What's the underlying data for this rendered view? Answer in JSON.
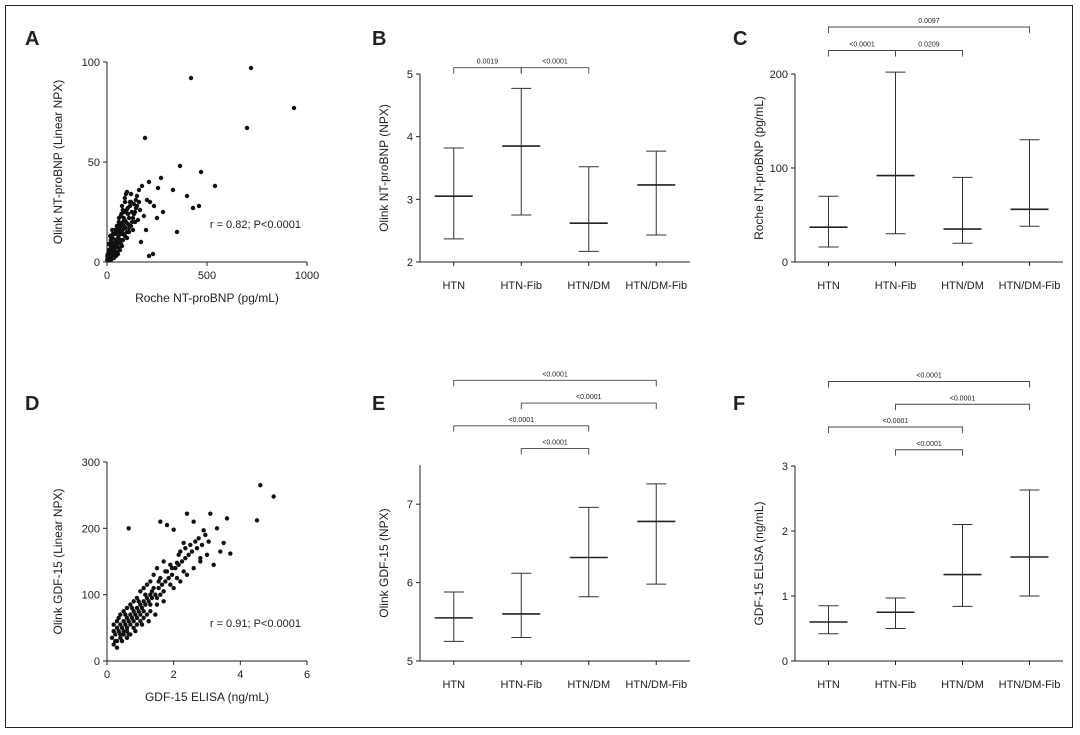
{
  "chart_data": [
    {
      "panel": "A",
      "type": "scatter",
      "xlabel": "Roche NT-proBNP (pg/mL)",
      "ylabel": "Olink NT-proBNP (Linear NPX)",
      "xlim": [
        0,
        1000
      ],
      "ylim": [
        0,
        100
      ],
      "xticks": [
        "0",
        "500",
        "1000"
      ],
      "yticks": [
        "0",
        "50",
        "100"
      ],
      "annotation": "r = 0.82; P<0.0001",
      "points": [
        [
          720,
          97
        ],
        [
          935,
          77
        ],
        [
          420,
          92
        ],
        [
          700,
          67
        ],
        [
          190,
          62
        ],
        [
          470,
          45
        ],
        [
          365,
          48
        ],
        [
          540,
          38
        ],
        [
          460,
          28
        ],
        [
          430,
          27
        ],
        [
          400,
          33
        ],
        [
          330,
          36
        ],
        [
          270,
          42
        ],
        [
          255,
          37
        ],
        [
          215,
          30
        ],
        [
          210,
          40
        ],
        [
          235,
          28
        ],
        [
          250,
          22
        ],
        [
          280,
          25
        ],
        [
          175,
          38
        ],
        [
          160,
          36
        ],
        [
          150,
          33
        ],
        [
          195,
          16
        ],
        [
          230,
          4
        ],
        [
          170,
          10
        ],
        [
          210,
          3
        ],
        [
          350,
          15
        ],
        [
          120,
          30
        ],
        [
          135,
          24
        ],
        [
          140,
          20
        ],
        [
          110,
          22
        ],
        [
          95,
          34
        ],
        [
          90,
          30
        ],
        [
          85,
          25
        ],
        [
          80,
          20
        ],
        [
          75,
          28
        ],
        [
          70,
          18
        ],
        [
          65,
          15
        ],
        [
          60,
          22
        ],
        [
          55,
          12
        ],
        [
          50,
          10
        ],
        [
          45,
          8
        ],
        [
          40,
          14
        ],
        [
          35,
          6
        ],
        [
          30,
          9
        ],
        [
          25,
          5
        ],
        [
          20,
          4
        ],
        [
          15,
          3
        ],
        [
          10,
          6
        ],
        [
          8,
          2
        ],
        [
          5,
          1
        ],
        [
          12,
          1
        ],
        [
          18,
          8
        ],
        [
          22,
          10
        ],
        [
          28,
          12
        ],
        [
          32,
          7
        ],
        [
          38,
          5
        ],
        [
          42,
          11
        ],
        [
          48,
          16
        ],
        [
          52,
          9
        ],
        [
          58,
          13
        ],
        [
          62,
          19
        ],
        [
          68,
          11
        ],
        [
          72,
          24
        ],
        [
          78,
          16
        ],
        [
          82,
          14
        ],
        [
          88,
          21
        ],
        [
          92,
          17
        ],
        [
          98,
          26
        ],
        [
          105,
          19
        ],
        [
          115,
          28
        ],
        [
          125,
          20
        ],
        [
          100,
          12
        ],
        [
          110,
          15
        ],
        [
          130,
          16
        ],
        [
          145,
          27
        ],
        [
          155,
          21
        ],
        [
          165,
          26
        ],
        [
          185,
          23
        ],
        [
          200,
          31
        ],
        [
          120,
          34
        ],
        [
          100,
          35
        ],
        [
          75,
          8
        ],
        [
          65,
          6
        ],
        [
          55,
          4
        ],
        [
          45,
          3
        ],
        [
          35,
          2
        ],
        [
          25,
          2
        ],
        [
          15,
          1
        ],
        [
          10,
          2
        ],
        [
          20,
          1
        ],
        [
          30,
          3
        ],
        [
          40,
          4
        ],
        [
          50,
          5
        ],
        [
          60,
          7
        ],
        [
          70,
          9
        ],
        [
          80,
          11
        ],
        [
          90,
          13
        ],
        [
          100,
          15
        ],
        [
          110,
          17
        ],
        [
          120,
          18
        ],
        [
          130,
          22
        ],
        [
          140,
          25
        ],
        [
          150,
          28
        ],
        [
          160,
          30
        ],
        [
          105,
          24
        ],
        [
          95,
          20
        ],
        [
          85,
          18
        ],
        [
          75,
          14
        ],
        [
          65,
          10
        ],
        [
          40,
          7
        ],
        [
          30,
          5
        ],
        [
          20,
          3
        ],
        [
          12,
          4
        ],
        [
          6,
          3
        ],
        [
          3,
          2
        ],
        [
          1,
          1
        ],
        [
          2,
          3
        ],
        [
          4,
          4
        ],
        [
          8,
          5
        ],
        [
          14,
          6
        ],
        [
          24,
          7
        ],
        [
          34,
          9
        ],
        [
          44,
          10
        ],
        [
          54,
          15
        ],
        [
          64,
          17
        ],
        [
          74,
          19
        ],
        [
          84,
          22
        ],
        [
          94,
          25
        ],
        [
          104,
          27
        ],
        [
          114,
          30
        ],
        [
          124,
          25
        ],
        [
          134,
          29
        ],
        [
          144,
          31
        ],
        [
          89,
          32
        ],
        [
          79,
          26
        ],
        [
          69,
          23
        ],
        [
          59,
          20
        ],
        [
          49,
          18
        ],
        [
          39,
          16
        ],
        [
          29,
          14
        ],
        [
          19,
          11
        ],
        [
          9,
          9
        ],
        [
          16,
          13
        ],
        [
          26,
          16
        ]
      ]
    },
    {
      "panel": "B",
      "type": "errorbar",
      "ylabel": "Olink NT-proBNP (NPX)",
      "ylim": [
        2,
        5
      ],
      "yticks": [
        "2",
        "3",
        "4",
        "5"
      ],
      "categories": [
        "HTN",
        "HTN-Fib",
        "HTN/DM",
        "HTN/DM-Fib"
      ],
      "median": [
        3.05,
        3.85,
        2.62,
        3.23
      ],
      "low": [
        2.37,
        2.75,
        2.17,
        2.43
      ],
      "high": [
        3.82,
        4.77,
        3.52,
        3.77
      ],
      "comparisons": [
        {
          "from": 0,
          "to": 1,
          "label": "0.0019",
          "y": 5.1
        },
        {
          "from": 1,
          "to": 2,
          "label": "<0.0001",
          "y": 5.1
        }
      ]
    },
    {
      "panel": "C",
      "type": "errorbar",
      "ylabel": "Roche NT-proBNP (pg/mL)",
      "ylim": [
        0,
        200
      ],
      "yticks": [
        "0",
        "100",
        "200"
      ],
      "categories": [
        "HTN",
        "HTN-Fib",
        "HTN/DM",
        "HTN/DM-Fib"
      ],
      "median": [
        37,
        92,
        35,
        56
      ],
      "low": [
        16,
        30,
        20,
        38
      ],
      "high": [
        70,
        202,
        90,
        130
      ],
      "comparisons": [
        {
          "from": 0,
          "to": 1,
          "label": "<0.0001",
          "y": 225
        },
        {
          "from": 1,
          "to": 2,
          "label": "0.0209",
          "y": 225
        },
        {
          "from": 0,
          "to": 3,
          "label": "0.0097",
          "y": 250
        }
      ]
    },
    {
      "panel": "D",
      "type": "scatter",
      "xlabel": "GDF-15 ELISA (ng/mL)",
      "ylabel": "Olink GDF-15 (Linear NPX)",
      "xlim": [
        0,
        6
      ],
      "ylim": [
        0,
        300
      ],
      "xticks": [
        "0",
        "2",
        "4",
        "6"
      ],
      "yticks": [
        "0",
        "100",
        "200",
        "300"
      ],
      "annotation": "r = 0.91; P<0.0001",
      "points": [
        [
          4.6,
          265
        ],
        [
          5.0,
          248
        ],
        [
          4.5,
          212
        ],
        [
          3.6,
          215
        ],
        [
          3.1,
          222
        ],
        [
          2.4,
          222
        ],
        [
          2.9,
          197
        ],
        [
          0.65,
          200
        ],
        [
          1.6,
          210
        ],
        [
          1.8,
          205
        ],
        [
          2.0,
          198
        ],
        [
          2.6,
          210
        ],
        [
          3.3,
          200
        ],
        [
          3.5,
          178
        ],
        [
          3.4,
          165
        ],
        [
          3.0,
          160
        ],
        [
          2.7,
          170
        ],
        [
          2.5,
          175
        ],
        [
          2.3,
          178
        ],
        [
          2.8,
          150
        ],
        [
          3.2,
          145
        ],
        [
          3.7,
          162
        ],
        [
          2.2,
          165
        ],
        [
          2.1,
          148
        ],
        [
          1.9,
          145
        ],
        [
          1.7,
          150
        ],
        [
          1.8,
          135
        ],
        [
          1.5,
          140
        ],
        [
          1.6,
          125
        ],
        [
          1.4,
          130
        ],
        [
          1.3,
          120
        ],
        [
          1.2,
          115
        ],
        [
          1.1,
          110
        ],
        [
          1.0,
          105
        ],
        [
          0.9,
          95
        ],
        [
          0.8,
          90
        ],
        [
          0.7,
          85
        ],
        [
          0.6,
          80
        ],
        [
          0.5,
          75
        ],
        [
          0.4,
          70
        ],
        [
          0.3,
          60
        ],
        [
          0.2,
          55
        ],
        [
          0.25,
          40
        ],
        [
          0.35,
          45
        ],
        [
          0.45,
          50
        ],
        [
          0.55,
          55
        ],
        [
          0.65,
          60
        ],
        [
          0.75,
          65
        ],
        [
          0.85,
          70
        ],
        [
          0.95,
          75
        ],
        [
          1.05,
          80
        ],
        [
          1.15,
          85
        ],
        [
          1.25,
          90
        ],
        [
          1.35,
          95
        ],
        [
          1.45,
          100
        ],
        [
          1.55,
          110
        ],
        [
          1.65,
          115
        ],
        [
          1.75,
          120
        ],
        [
          1.85,
          125
        ],
        [
          1.95,
          130
        ],
        [
          2.05,
          140
        ],
        [
          2.15,
          145
        ],
        [
          2.25,
          150
        ],
        [
          2.35,
          155
        ],
        [
          2.45,
          160
        ],
        [
          2.55,
          165
        ],
        [
          2.65,
          180
        ],
        [
          2.75,
          185
        ],
        [
          2.85,
          175
        ],
        [
          2.95,
          190
        ],
        [
          3.05,
          180
        ],
        [
          1.2,
          70
        ],
        [
          1.0,
          60
        ],
        [
          0.8,
          50
        ],
        [
          0.6,
          45
        ],
        [
          0.4,
          35
        ],
        [
          0.3,
          30
        ],
        [
          0.5,
          40
        ],
        [
          0.7,
          55
        ],
        [
          0.9,
          65
        ],
        [
          1.1,
          75
        ],
        [
          1.3,
          85
        ],
        [
          1.5,
          95
        ],
        [
          1.7,
          105
        ],
        [
          1.9,
          115
        ],
        [
          2.1,
          125
        ],
        [
          2.3,
          135
        ],
        [
          0.6,
          65
        ],
        [
          0.8,
          75
        ],
        [
          1.0,
          85
        ],
        [
          1.2,
          95
        ],
        [
          1.4,
          110
        ],
        [
          1.6,
          100
        ],
        [
          0.5,
          60
        ],
        [
          0.7,
          70
        ],
        [
          0.9,
          80
        ],
        [
          1.1,
          90
        ],
        [
          1.3,
          100
        ],
        [
          0.4,
          55
        ],
        [
          0.6,
          50
        ],
        [
          0.8,
          60
        ],
        [
          1.0,
          70
        ],
        [
          0.3,
          50
        ],
        [
          0.5,
          45
        ],
        [
          0.7,
          40
        ],
        [
          0.9,
          55
        ],
        [
          1.1,
          65
        ],
        [
          1.3,
          75
        ],
        [
          1.5,
          85
        ],
        [
          1.7,
          90
        ],
        [
          2.0,
          110
        ],
        [
          2.2,
          120
        ],
        [
          2.4,
          130
        ],
        [
          2.6,
          140
        ],
        [
          2.8,
          155
        ],
        [
          0.2,
          45
        ],
        [
          0.4,
          40
        ],
        [
          0.6,
          35
        ],
        [
          0.35,
          65
        ],
        [
          0.55,
          70
        ],
        [
          0.75,
          80
        ],
        [
          0.95,
          90
        ],
        [
          1.15,
          100
        ],
        [
          1.35,
          105
        ],
        [
          1.55,
          120
        ],
        [
          1.75,
          135
        ],
        [
          1.95,
          140
        ],
        [
          2.15,
          160
        ],
        [
          2.35,
          170
        ],
        [
          0.45,
          30
        ],
        [
          0.65,
          40
        ],
        [
          0.85,
          45
        ],
        [
          1.05,
          55
        ],
        [
          1.25,
          60
        ],
        [
          1.45,
          70
        ],
        [
          0.25,
          30
        ],
        [
          0.15,
          35
        ],
        [
          0.2,
          25
        ],
        [
          0.3,
          20
        ]
      ]
    },
    {
      "panel": "E",
      "type": "errorbar",
      "ylabel": "Olink GDF-15 (NPX)",
      "ylim": [
        5,
        7.5
      ],
      "yticks": [
        "5",
        "6",
        "7"
      ],
      "categories": [
        "HTN",
        "HTN-Fib",
        "HTN/DM",
        "HTN/DM-Fib"
      ],
      "median": [
        5.55,
        5.6,
        6.32,
        6.78
      ],
      "low": [
        5.25,
        5.3,
        5.82,
        5.98
      ],
      "high": [
        5.88,
        6.12,
        6.96,
        7.26
      ],
      "comparisons": [
        {
          "from": 1,
          "to": 2,
          "label": "<0.0001",
          "y": 7.71
        },
        {
          "from": 0,
          "to": 2,
          "label": "<0.0001",
          "y": 8.0
        },
        {
          "from": 1,
          "to": 3,
          "label": "<0.0001",
          "y": 8.29
        },
        {
          "from": 0,
          "to": 3,
          "label": "<0.0001",
          "y": 8.58
        }
      ]
    },
    {
      "panel": "F",
      "type": "errorbar",
      "ylabel": "GDF-15 ELISA (ng/mL)",
      "ylim": [
        0,
        3
      ],
      "yticks": [
        "0",
        "1",
        "2",
        "3"
      ],
      "categories": [
        "HTN",
        "HTN-Fib",
        "HTN/DM",
        "HTN/DM-Fib"
      ],
      "median": [
        0.6,
        0.75,
        1.33,
        1.6
      ],
      "low": [
        0.42,
        0.5,
        0.84,
        1.0
      ],
      "high": [
        0.85,
        0.97,
        2.1,
        2.63
      ],
      "comparisons": [
        {
          "from": 1,
          "to": 2,
          "label": "<0.0001",
          "y": 3.25
        },
        {
          "from": 0,
          "to": 2,
          "label": "<0.0001",
          "y": 3.6
        },
        {
          "from": 1,
          "to": 3,
          "label": "<0.0001",
          "y": 3.95
        },
        {
          "from": 0,
          "to": 3,
          "label": "<0.0001",
          "y": 4.3
        }
      ]
    }
  ]
}
